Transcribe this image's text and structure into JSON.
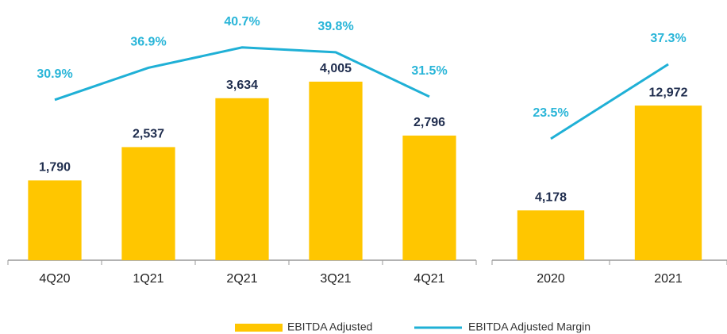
{
  "chart_data": [
    {
      "type": "bar-line",
      "categories": [
        "4Q20",
        "1Q21",
        "2Q21",
        "3Q21",
        "4Q21"
      ],
      "series": [
        {
          "name": "EBITDA Adjusted",
          "color": "#ffc600",
          "values": [
            1790,
            2537,
            3634,
            4005,
            2796
          ],
          "value_labels": [
            "1,790",
            "2,537",
            "3,634",
            "4,005",
            "2,796"
          ]
        },
        {
          "name": "EBITDA Adjusted Margin",
          "color": "#1fb0d6",
          "axis": "y2",
          "values": [
            30.9,
            36.9,
            40.7,
            39.8,
            31.5
          ],
          "value_labels": [
            "30.9%",
            "36.9%",
            "40.7%",
            "39.8%",
            "31.5%"
          ]
        }
      ],
      "ylim": [
        0,
        5000
      ],
      "y2lim": [
        0.9,
        42.6
      ]
    },
    {
      "type": "bar-line",
      "categories": [
        "2020",
        "2021"
      ],
      "series": [
        {
          "color": "#ffc600",
          "values": [
            4178,
            12972
          ],
          "value_labels": [
            "4,178",
            "12,972"
          ]
        },
        {
          "color": "#1fb0d6",
          "axis": "y2",
          "values": [
            23.5,
            37.3
          ],
          "value_labels": [
            "23.5%",
            "37.3%"
          ]
        }
      ],
      "ylim": [
        0,
        18700
      ],
      "y2lim": [
        1,
        42.3
      ]
    }
  ]
}
